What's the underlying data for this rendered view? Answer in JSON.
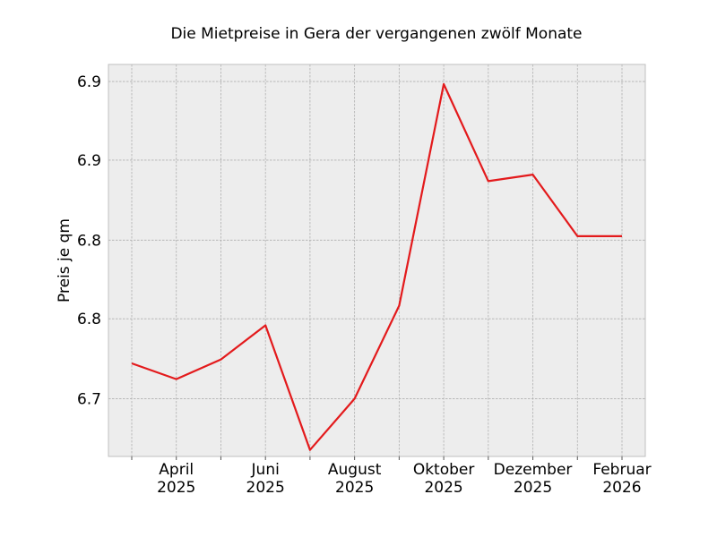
{
  "chart_data": {
    "type": "line",
    "title": "Die Mietpreise in Gera der vergangenen zwölf Monate",
    "ylabel": "Preis je qm",
    "xlabel": "",
    "x": [
      "2025-03",
      "2025-04",
      "2025-05",
      "2025-06",
      "2025-07",
      "2025-08",
      "2025-09",
      "2025-10",
      "2025-11",
      "2025-12",
      "2026-01",
      "2026-02"
    ],
    "series": [
      {
        "values": [
          6.724,
          6.712,
          6.727,
          6.753,
          6.658,
          6.697,
          6.768,
          6.937,
          6.863,
          6.868,
          6.821,
          6.821
        ],
        "color": "#e31a1c"
      }
    ],
    "ylim": [
      6.653,
      6.952
    ],
    "y_ticks": [
      {
        "value": 6.697,
        "label": "6.7"
      },
      {
        "value": 6.758,
        "label": "6.8"
      },
      {
        "value": 6.818,
        "label": "6.8"
      },
      {
        "value": 6.879,
        "label": "6.9"
      },
      {
        "value": 6.939,
        "label": "6.9"
      }
    ],
    "x_ticks": [
      {
        "value": "2025-04",
        "line1": "April",
        "line2": "2025"
      },
      {
        "value": "2025-06",
        "line1": "Juni",
        "line2": "2025"
      },
      {
        "value": "2025-08",
        "line1": "August",
        "line2": "2025"
      },
      {
        "value": "2025-10",
        "line1": "Oktober",
        "line2": "2025"
      },
      {
        "value": "2025-12",
        "line1": "Dezember",
        "line2": "2025"
      },
      {
        "value": "2026-02",
        "line1": "Februar",
        "line2": "2026"
      }
    ],
    "minor_x_ticks": [
      "2025-03",
      "2025-05",
      "2025-07",
      "2025-09",
      "2025-11",
      "2026-01"
    ],
    "grid": true,
    "background": "#ededed",
    "frame_color": "#bfbfbf"
  }
}
